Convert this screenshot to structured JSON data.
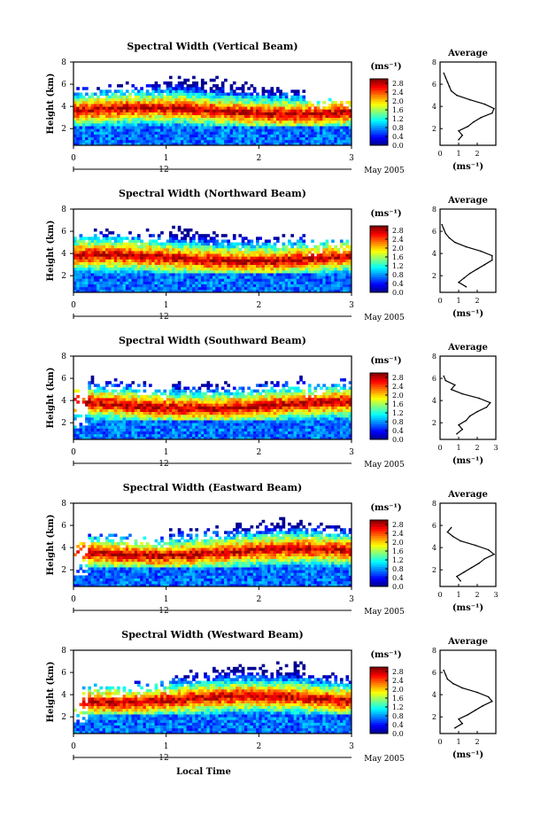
{
  "chart_data": [
    {
      "type": "heatmap",
      "title": "Spectral Width (Vertical Beam)",
      "ylabel": "Height (km)",
      "x_ticks": [
        "0",
        "1",
        "2",
        "3"
      ],
      "y_ticks": [
        "2",
        "4",
        "6",
        "8"
      ],
      "xlim": [
        0,
        3
      ],
      "ylim": [
        0.5,
        8
      ],
      "date_label": "12",
      "date_label_right": "May 2005",
      "colorbar": {
        "unit": "(ms⁻¹)",
        "ticks": [
          "0.0",
          "0.4",
          "0.8",
          "1.2",
          "1.6",
          "2.0",
          "2.4",
          "2.8"
        ],
        "range": [
          0,
          3
        ]
      },
      "average": {
        "title": "Average",
        "xlabel": "(ms⁻¹)",
        "x_ticks": [
          "0",
          "1",
          "2"
        ],
        "y_ticks": [
          "2",
          "4",
          "6",
          "8"
        ],
        "xlim": [
          0,
          3
        ],
        "ylim": [
          0.5,
          8
        ],
        "profile": [
          [
            1.0,
            1.0
          ],
          [
            1.2,
            1.4
          ],
          [
            1.0,
            1.8
          ],
          [
            1.5,
            2.2
          ],
          [
            1.8,
            2.6
          ],
          [
            2.2,
            3.0
          ],
          [
            2.8,
            3.4
          ],
          [
            2.9,
            3.8
          ],
          [
            2.4,
            4.2
          ],
          [
            1.6,
            4.6
          ],
          [
            0.9,
            5.0
          ],
          [
            0.6,
            5.4
          ],
          [
            0.5,
            5.8
          ],
          [
            0.4,
            6.2
          ],
          [
            0.3,
            6.6
          ],
          [
            0.2,
            7.0
          ]
        ]
      }
    },
    {
      "type": "heatmap",
      "title": "Spectral Width (Northward Beam)",
      "ylabel": "Height (km)",
      "x_ticks": [
        "0",
        "1",
        "2",
        "3"
      ],
      "y_ticks": [
        "2",
        "4",
        "6",
        "8"
      ],
      "xlim": [
        0,
        3
      ],
      "ylim": [
        0.5,
        8
      ],
      "date_label": "12",
      "date_label_right": "May 2005",
      "colorbar": {
        "unit": "(ms⁻¹)",
        "ticks": [
          "0.0",
          "0.4",
          "0.8",
          "1.2",
          "1.6",
          "2.0",
          "2.4",
          "2.8"
        ],
        "range": [
          0,
          3
        ]
      },
      "average": {
        "title": "Average",
        "xlabel": "(ms⁻¹)",
        "x_ticks": [
          "0",
          "1",
          "2"
        ],
        "y_ticks": [
          "2",
          "4",
          "6",
          "8"
        ],
        "xlim": [
          0,
          3
        ],
        "ylim": [
          0.5,
          8
        ],
        "profile": [
          [
            1.4,
            1.0
          ],
          [
            1.0,
            1.4
          ],
          [
            1.3,
            1.8
          ],
          [
            1.6,
            2.2
          ],
          [
            2.0,
            2.6
          ],
          [
            2.4,
            3.0
          ],
          [
            2.8,
            3.4
          ],
          [
            2.8,
            3.8
          ],
          [
            2.2,
            4.2
          ],
          [
            1.4,
            4.6
          ],
          [
            0.8,
            5.0
          ],
          [
            0.5,
            5.4
          ],
          [
            0.3,
            5.8
          ],
          [
            0.2,
            6.2
          ],
          [
            0.1,
            6.6
          ]
        ]
      }
    },
    {
      "type": "heatmap",
      "title": "Spectral Width (Southward Beam)",
      "ylabel": "Height (km)",
      "x_ticks": [
        "0",
        "1",
        "2",
        "3"
      ],
      "y_ticks": [
        "2",
        "4",
        "6",
        "8"
      ],
      "xlim": [
        0,
        3
      ],
      "ylim": [
        0.5,
        8
      ],
      "date_label": "12",
      "date_label_right": "May 2005",
      "colorbar": {
        "unit": "(ms⁻¹)",
        "ticks": [
          "0.0",
          "0.4",
          "0.8",
          "1.2",
          "1.6",
          "2.0",
          "2.4",
          "2.8"
        ],
        "range": [
          0,
          3
        ]
      },
      "average": {
        "title": "Average",
        "xlabel": "(ms⁻¹)",
        "x_ticks": [
          "0",
          "1",
          "2",
          "3"
        ],
        "y_ticks": [
          "2",
          "4",
          "6",
          "8"
        ],
        "xlim": [
          0,
          3
        ],
        "ylim": [
          0.5,
          8
        ],
        "profile": [
          [
            0.9,
            1.0
          ],
          [
            1.2,
            1.4
          ],
          [
            1.0,
            1.8
          ],
          [
            1.4,
            2.2
          ],
          [
            1.6,
            2.6
          ],
          [
            2.0,
            3.0
          ],
          [
            2.5,
            3.4
          ],
          [
            2.7,
            3.8
          ],
          [
            2.1,
            4.2
          ],
          [
            1.2,
            4.6
          ],
          [
            0.6,
            5.0
          ],
          [
            0.8,
            5.4
          ],
          [
            0.3,
            5.8
          ],
          [
            0.2,
            6.2
          ]
        ]
      }
    },
    {
      "type": "heatmap",
      "title": "Spectral Width (Eastward Beam)",
      "ylabel": "Height (km)",
      "x_ticks": [
        "0",
        "1",
        "2",
        "3"
      ],
      "y_ticks": [
        "2",
        "4",
        "6",
        "8"
      ],
      "xlim": [
        0,
        3
      ],
      "ylim": [
        0.5,
        8
      ],
      "date_label": "12",
      "date_label_right": "May 2005",
      "colorbar": {
        "unit": "(ms⁻¹)",
        "ticks": [
          "0.0",
          "0.4",
          "0.8",
          "1.2",
          "1.6",
          "2.0",
          "2.4",
          "2.8"
        ],
        "range": [
          0,
          3
        ]
      },
      "average": {
        "title": "Average",
        "xlabel": "(ms⁻¹)",
        "x_ticks": [
          "0",
          "1",
          "2",
          "3"
        ],
        "y_ticks": [
          "2",
          "4",
          "6",
          "8"
        ],
        "xlim": [
          0,
          3
        ],
        "ylim": [
          0.5,
          8
        ],
        "profile": [
          [
            1.1,
            1.0
          ],
          [
            0.9,
            1.4
          ],
          [
            1.3,
            1.8
          ],
          [
            1.7,
            2.2
          ],
          [
            2.1,
            2.6
          ],
          [
            2.4,
            3.0
          ],
          [
            2.9,
            3.4
          ],
          [
            2.6,
            3.8
          ],
          [
            1.9,
            4.2
          ],
          [
            1.1,
            4.6
          ],
          [
            0.7,
            5.0
          ],
          [
            0.4,
            5.4
          ],
          [
            0.6,
            5.8
          ]
        ]
      }
    },
    {
      "type": "heatmap",
      "title": "Spectral Width (Westward Beam)",
      "ylabel": "Height (km)",
      "x_ticks": [
        "0",
        "1",
        "2",
        "3"
      ],
      "y_ticks": [
        "2",
        "4",
        "6",
        "8"
      ],
      "xlim": [
        0,
        3
      ],
      "ylim": [
        0.5,
        8
      ],
      "date_label": "12",
      "date_label_right": "May 2005",
      "xlabel": "Local Time",
      "colorbar": {
        "unit": "(ms⁻¹)",
        "ticks": [
          "0.0",
          "0.4",
          "0.8",
          "1.2",
          "1.6",
          "2.0",
          "2.4",
          "2.8"
        ],
        "range": [
          0,
          3
        ]
      },
      "average": {
        "title": "Average",
        "xlabel": "(ms⁻¹)",
        "x_ticks": [
          "0",
          "1",
          "2"
        ],
        "y_ticks": [
          "2",
          "4",
          "6",
          "8"
        ],
        "xlim": [
          0,
          3
        ],
        "ylim": [
          0.5,
          8
        ],
        "profile": [
          [
            0.8,
            1.0
          ],
          [
            1.2,
            1.4
          ],
          [
            1.0,
            1.8
          ],
          [
            1.5,
            2.2
          ],
          [
            1.9,
            2.6
          ],
          [
            2.3,
            3.0
          ],
          [
            2.8,
            3.4
          ],
          [
            2.6,
            3.8
          ],
          [
            2.0,
            4.2
          ],
          [
            1.2,
            4.6
          ],
          [
            0.7,
            5.0
          ],
          [
            0.4,
            5.4
          ],
          [
            0.3,
            5.8
          ],
          [
            0.2,
            6.2
          ]
        ]
      }
    }
  ]
}
